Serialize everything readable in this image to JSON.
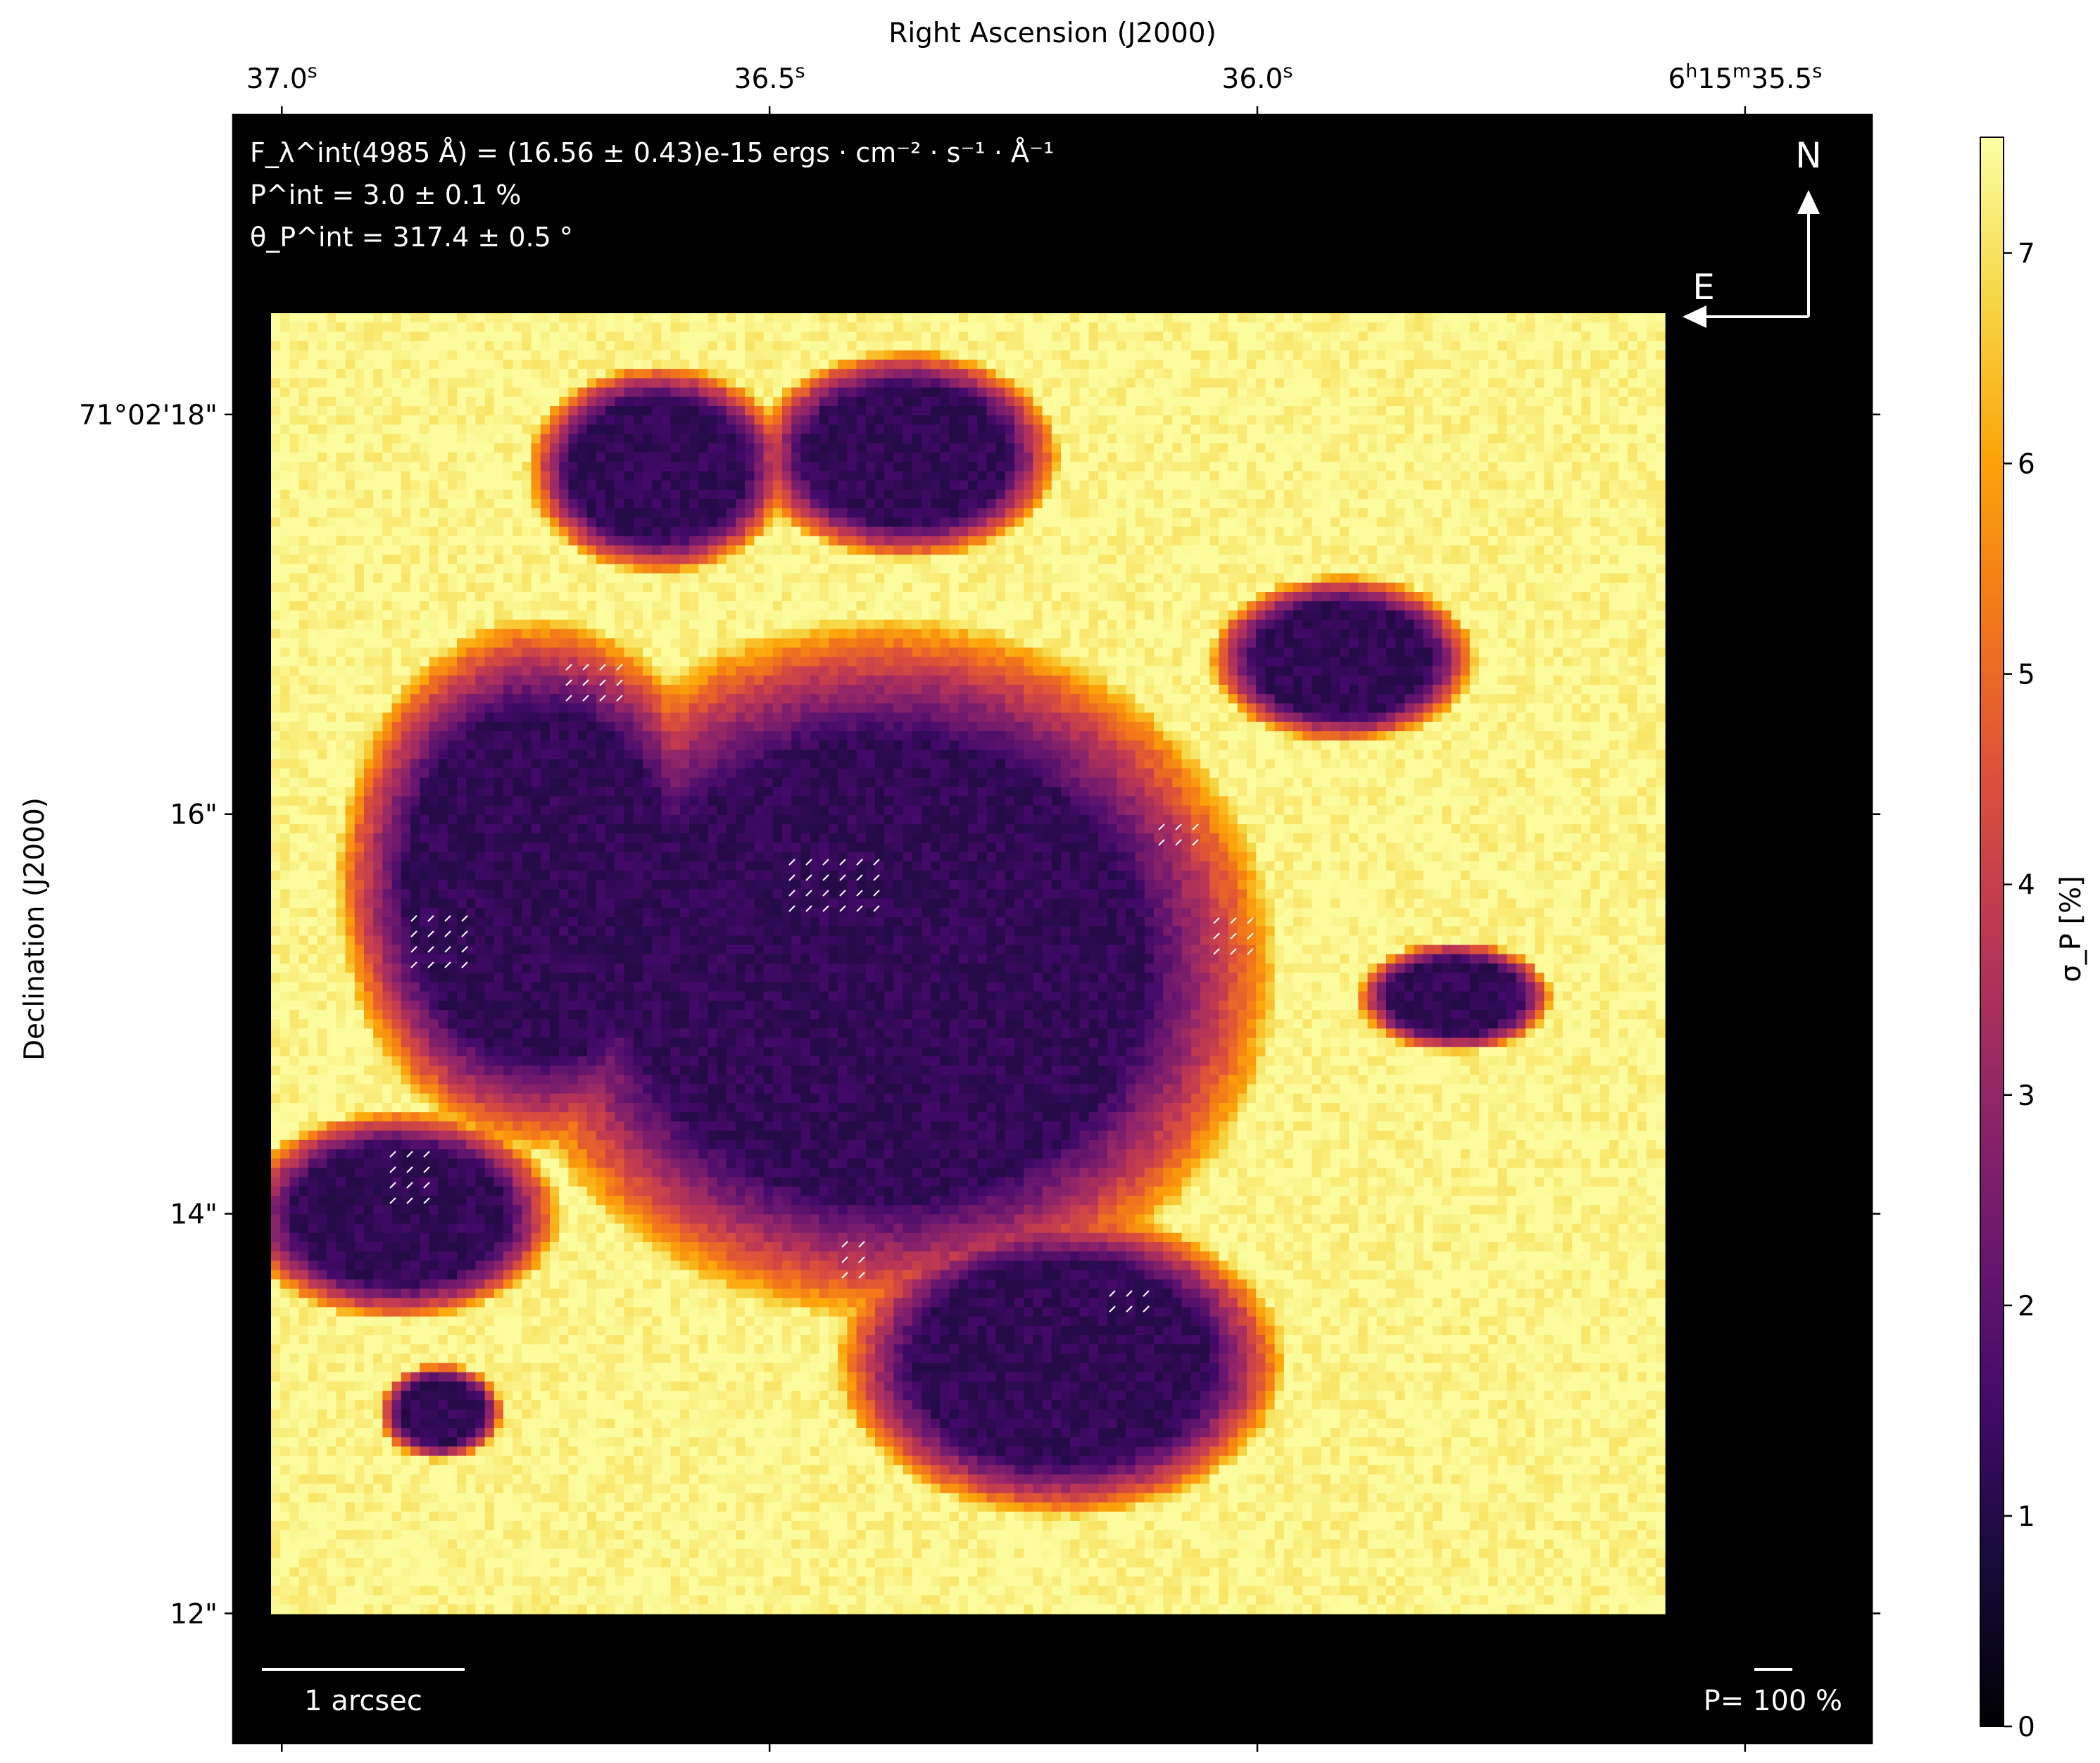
{
  "chart_data": {
    "type": "heatmap",
    "title_top_axis": "Right Ascension (J2000)",
    "ylabel": "Declination (J2000)",
    "x_ticks": [
      {
        "label": "37.0",
        "sup": "s"
      },
      {
        "label": "36.5",
        "sup": "s"
      },
      {
        "label": "36.0",
        "sup": "s"
      },
      {
        "label": "6h15m35.5s",
        "sup": ""
      }
    ],
    "x_tick_ra_seconds": [
      37.0,
      36.5,
      36.0,
      35.5
    ],
    "y_ticks": [
      "71°02'18\"",
      "16\"",
      "14\"",
      "12\""
    ],
    "y_tick_dec_arcsec": [
      18,
      16,
      14,
      12
    ],
    "xlim_ra_seconds": [
      37.05,
      35.37
    ],
    "ylim_dec_arcsec": [
      11.35,
      19.5
    ],
    "annotations": {
      "flux": "F_λ^int(4985 Å) = (16.56 ± 0.43)e-15 ergs · cm⁻² · s⁻¹ · Å⁻¹",
      "pol": "P^int = 3.0 ± 0.1 %",
      "angle": "θ_P^int = 317.4 ± 0.5 °"
    },
    "compass": {
      "north": "N",
      "east": "E"
    },
    "scalebar_label": "1 arcsec",
    "pol_scale_label": "P= 100 %",
    "colorbar": {
      "label": "σ_P [%]",
      "colormap": "inferno",
      "vmin": 0,
      "vmax": 7.55,
      "ticks": [
        "0",
        "1",
        "2",
        "3",
        "4",
        "5",
        "6",
        "7"
      ]
    },
    "map_description_values": {
      "outside_value": 0,
      "core_min_percent": 1.2,
      "edge_max_percent": 7.5
    },
    "ra_dec_units": "RA seconds of 6h15m, Dec arcsec of +71°02'"
  },
  "colors": {
    "background": "#000000",
    "frame": "#000000",
    "text_on_map": "#ffffff"
  }
}
